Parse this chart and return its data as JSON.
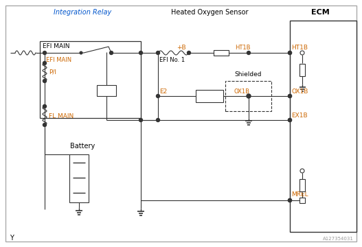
{
  "background_color": "#ffffff",
  "wire_color": "#333333",
  "label_color": "#cc6600",
  "blue_color": "#0055cc",
  "figsize": [
    5.27,
    3.6
  ],
  "dpi": 100,
  "labels": {
    "integration_relay": "Integration Relay",
    "heated_oxygen_sensor": "Heated Oxygen Sensor",
    "ecm": "ECM",
    "efi_main_box": "EFI MAIN",
    "efi_main_wire": "EFI MAIN",
    "efi_no1": "EFI No. 1",
    "pi": "P/I",
    "fl_main": "FL MAIN",
    "battery": "Battery",
    "plus_b": "+B",
    "ht1b_sensor": "HT1B",
    "ht1b_ecm": "HT1B",
    "e2": "E2",
    "ox1b_sensor": "OX1B",
    "ox1b_ecm": "OX1B",
    "ex1b": "EX1B",
    "mrel": "MREL",
    "shielded": "Shielded",
    "watermark": "A127354031",
    "y_label": "Y"
  }
}
